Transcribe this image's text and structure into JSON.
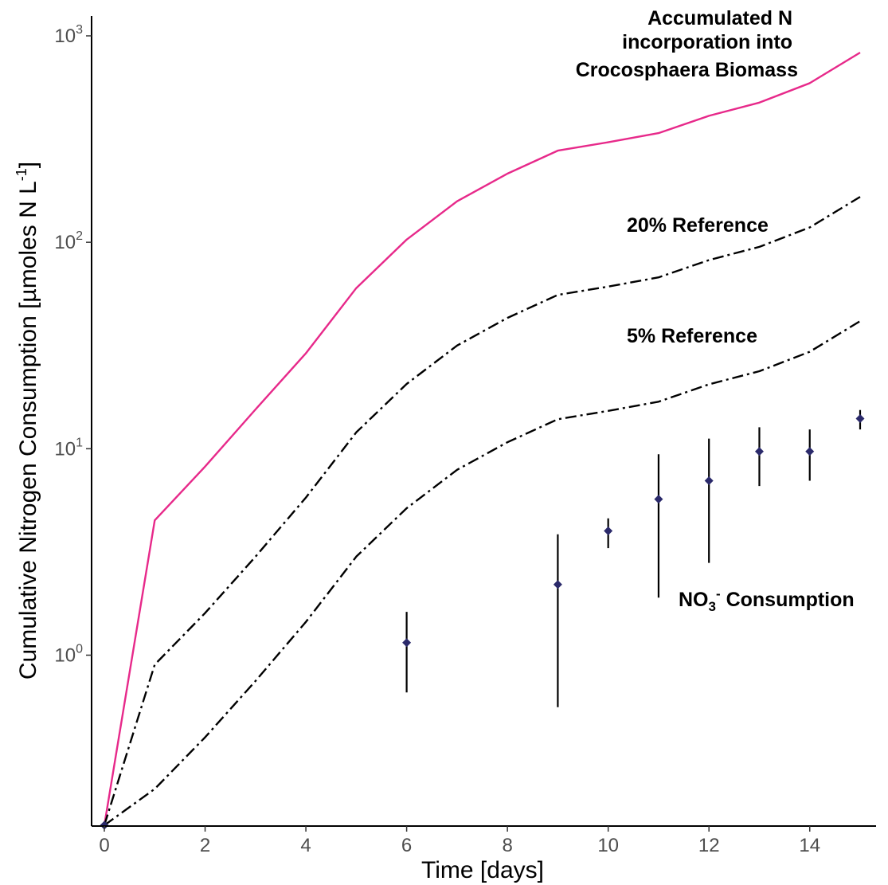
{
  "chart_data": {
    "type": "line",
    "title": "",
    "xlabel": "Time [days]",
    "ylabel": {
      "main": "Cumulative Nitrogen Consumption [µmoles N L",
      "sup": "-1",
      "close": "]"
    },
    "yscale": "log10",
    "xlim": [
      0,
      15
    ],
    "ylim": [
      0.15,
      1000
    ],
    "x_ticks": [
      0,
      2,
      4,
      6,
      8,
      10,
      12,
      14
    ],
    "y_ticks": [
      {
        "value": 1,
        "base": "10",
        "exp": "0"
      },
      {
        "value": 10,
        "base": "10",
        "exp": "1"
      },
      {
        "value": 100,
        "base": "10",
        "exp": "2"
      },
      {
        "value": 1000,
        "base": "10",
        "exp": "3"
      }
    ],
    "grid": false,
    "legend": "none",
    "series": [
      {
        "style": "solid",
        "color": "#e7298a",
        "x": [
          0,
          1,
          2,
          3,
          4,
          5,
          6,
          7,
          8,
          9,
          10,
          11,
          12,
          13,
          14,
          15
        ],
        "y": [
          0.15,
          4.5,
          8.2,
          15.5,
          29,
          60,
          103,
          158,
          215,
          278,
          305,
          338,
          410,
          475,
          590,
          830
        ]
      },
      {
        "style": "dashdot",
        "color": "#000000",
        "x": [
          0,
          1,
          2,
          3,
          4,
          5,
          6,
          7,
          8,
          9,
          10,
          11,
          12,
          13,
          14,
          15
        ],
        "y": [
          0.15,
          0.9,
          1.6,
          3.0,
          5.8,
          12,
          20.6,
          31.6,
          43,
          55.6,
          61,
          67.6,
          82,
          95,
          118,
          166
        ]
      },
      {
        "style": "dashdot",
        "color": "#000000",
        "x": [
          0,
          1,
          2,
          3,
          4,
          5,
          6,
          7,
          8,
          9,
          10,
          11,
          12,
          13,
          14,
          15
        ],
        "y": [
          0.15,
          0.225,
          0.4,
          0.75,
          1.45,
          3.0,
          5.15,
          7.9,
          10.75,
          13.9,
          15.25,
          16.9,
          20.5,
          23.75,
          29.5,
          41.5
        ]
      },
      {
        "style": "points-errorbars",
        "color": "#2b2a6b",
        "x": [
          0,
          6,
          9,
          10,
          11,
          12,
          13,
          14,
          15
        ],
        "y": [
          0.15,
          1.15,
          2.2,
          4.0,
          5.7,
          7.0,
          9.7,
          9.7,
          14.0
        ],
        "ymin": [
          null,
          0.66,
          0.56,
          3.3,
          1.9,
          2.8,
          6.6,
          7.0,
          12.4
        ],
        "ymax": [
          null,
          1.62,
          3.85,
          4.6,
          9.4,
          11.2,
          12.7,
          12.4,
          15.4
        ]
      }
    ],
    "annotations": {
      "biomass": [
        "Accumulated N",
        "incorporation into",
        "Crocosphaera Biomass"
      ],
      "ref20": "20% Reference",
      "ref5": "5% Reference",
      "no3": {
        "prefix": "NO",
        "sub": "3",
        "sup": "-",
        "suffix": " Consumption"
      }
    }
  }
}
